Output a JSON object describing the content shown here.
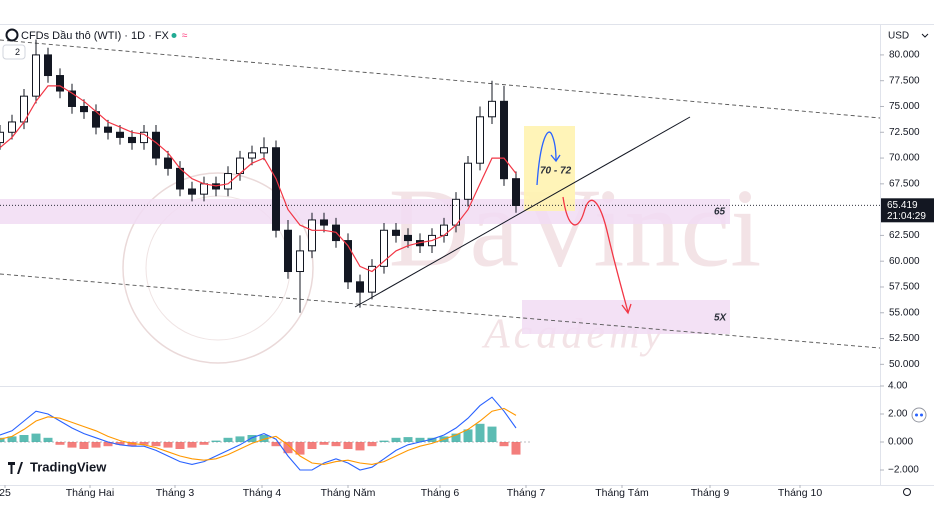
{
  "header": {
    "currency": "USD",
    "indicator_count": "2",
    "brand": "TradingView",
    "watermark": "DaVinci",
    "watermark_sub": "Academy",
    "countdown": "21:04:29"
  },
  "annotations": {
    "target_zone": "70 - 72",
    "support": "65",
    "lower_zone": "5X"
  },
  "chart_data": [
    {
      "type": "candlestick",
      "title": "CFDs Dầu thô (WTI) · 1D · FX",
      "x": [
        0,
        3,
        6,
        9,
        12,
        15,
        18,
        21,
        24,
        27,
        30,
        33,
        36,
        39,
        42,
        45,
        48,
        51,
        54,
        57,
        60,
        63,
        66,
        69,
        72,
        75,
        78,
        81,
        84,
        87,
        90,
        93,
        96,
        99,
        102,
        105,
        108,
        111,
        114,
        117,
        120,
        123,
        126,
        129
      ],
      "open": [
        71.5,
        72.5,
        73.5,
        76,
        80,
        78,
        76.5,
        75,
        74.5,
        73,
        72.5,
        72,
        71.5,
        72.5,
        70,
        69,
        67,
        66.5,
        67.5,
        67,
        68.5,
        70,
        70.5,
        71,
        63,
        59,
        61,
        64,
        63.5,
        62,
        58,
        57,
        59.5,
        63,
        62.5,
        62,
        61.5,
        62.5,
        63.5,
        66,
        69.5,
        74,
        75.5,
        68
      ],
      "high": [
        73.2,
        74.2,
        76.7,
        81.5,
        80.7,
        78.7,
        77.2,
        75.7,
        75.2,
        73.7,
        73.2,
        72.7,
        73.2,
        73.2,
        70.7,
        69.7,
        67.7,
        68.2,
        68.2,
        69.2,
        70.7,
        71.2,
        72,
        71.7,
        64,
        62.5,
        64.7,
        64.7,
        64.2,
        62.7,
        58.7,
        60.2,
        63.7,
        63.7,
        63.2,
        62.7,
        63.2,
        64.2,
        66.7,
        70.2,
        75,
        77.5,
        77,
        68.7
      ],
      "low": [
        70.8,
        71.8,
        72.8,
        75.3,
        77.3,
        75.8,
        74.3,
        73.8,
        72.3,
        71.8,
        71.3,
        70.8,
        70.8,
        69.3,
        68.3,
        66.3,
        65.8,
        65.8,
        66.3,
        66.3,
        67.8,
        69.3,
        69.8,
        62.3,
        58.3,
        55,
        60.3,
        62.8,
        61.3,
        57.3,
        55.5,
        56.3,
        58.8,
        61.8,
        61.3,
        60.8,
        60.8,
        61.8,
        62.8,
        65.3,
        68.8,
        73.3,
        67.3,
        64.7
      ],
      "close": [
        72.5,
        73.5,
        76,
        80,
        78,
        76.5,
        75,
        74.5,
        73,
        72.5,
        72,
        71.5,
        72.5,
        70,
        69,
        67,
        66.5,
        67.5,
        67,
        68.5,
        70,
        70.5,
        71,
        63,
        59,
        61,
        64,
        63.5,
        62,
        58,
        57,
        59.5,
        63,
        62.5,
        62,
        61.5,
        62.5,
        63.5,
        66,
        69.5,
        74,
        75.5,
        68,
        65.4
      ],
      "up_color": "#ffffff",
      "down_color": "#131722",
      "ma": {
        "color": "#f23645",
        "values": [
          71,
          72,
          73.5,
          75.5,
          77,
          77,
          76.3,
          75.5,
          74.5,
          73.5,
          73,
          72.5,
          72.3,
          71.5,
          70.5,
          69,
          68,
          67.5,
          67.3,
          67.5,
          68.5,
          69.5,
          70,
          68,
          65,
          63.5,
          63,
          63,
          62.8,
          61.5,
          59.5,
          59,
          60,
          61,
          61.5,
          61.8,
          62,
          62.5,
          63.5,
          65,
          67.5,
          70,
          70,
          68.5
        ]
      },
      "last_price": 65.419,
      "xlim": [
        0,
        220
      ],
      "xticks": [
        {
          "value": 1.25,
          "label": "25"
        },
        {
          "value": 22.5,
          "label": "Tháng Hai"
        },
        {
          "value": 43.75,
          "label": "Tháng 3"
        },
        {
          "value": 65.5,
          "label": "Tháng 4"
        },
        {
          "value": 87,
          "label": "Tháng Năm"
        },
        {
          "value": 110,
          "label": "Tháng 6"
        },
        {
          "value": 131.5,
          "label": "Tháng 7"
        },
        {
          "value": 155.5,
          "label": "Tháng Tám"
        },
        {
          "value": 177.5,
          "label": "Tháng 9"
        },
        {
          "value": 200,
          "label": "Tháng 10"
        }
      ],
      "ylim": [
        47.9,
        82.9
      ],
      "yticks": [
        {
          "value": 80,
          "label": "80.000"
        },
        {
          "value": 77.5,
          "label": "77.500"
        },
        {
          "value": 75,
          "label": "75.000"
        },
        {
          "value": 72.5,
          "label": "72.500"
        },
        {
          "value": 70,
          "label": "70.000"
        },
        {
          "value": 67.5,
          "label": "67.500"
        },
        {
          "value": 62.5,
          "label": "62.500"
        },
        {
          "value": 60,
          "label": "60.000"
        },
        {
          "value": 57.5,
          "label": "57.500"
        },
        {
          "value": 55,
          "label": "55.000"
        },
        {
          "value": 52.5,
          "label": "52.500"
        },
        {
          "value": 50,
          "label": "50.000"
        }
      ]
    },
    {
      "type": "macd",
      "histogram": {
        "color": "#26a69a",
        "negative_color": "#ef5350",
        "values": [
          0.3,
          0.4,
          0.5,
          0.6,
          0.3,
          -0.2,
          -0.4,
          -0.5,
          -0.4,
          -0.3,
          -0.2,
          -0.3,
          -0.2,
          -0.3,
          -0.4,
          -0.5,
          -0.4,
          -0.2,
          0.1,
          0.3,
          0.4,
          0.5,
          0.5,
          -0.3,
          -0.8,
          -0.9,
          -0.5,
          -0.2,
          -0.3,
          -0.5,
          -0.6,
          -0.3,
          0.1,
          0.3,
          0.35,
          0.3,
          0.3,
          0.4,
          0.6,
          0.9,
          1.3,
          1.1,
          -0.3,
          -0.9
        ]
      },
      "series": [
        {
          "color": "#2962ff",
          "values": [
            0.5,
            0.8,
            1.5,
            2.2,
            2,
            1.5,
            1,
            0.6,
            0.3,
            0,
            -0.2,
            -0.3,
            -0.3,
            -0.6,
            -1,
            -1.4,
            -1.6,
            -1.4,
            -1,
            -0.6,
            -0.2,
            0.3,
            0.6,
            0.2,
            -1,
            -2,
            -2,
            -1.5,
            -1.2,
            -1.5,
            -2,
            -1.8,
            -1.2,
            -0.6,
            -0.2,
            0,
            0.2,
            0.5,
            1,
            1.7,
            2.6,
            3.2,
            2.2,
            1
          ]
        },
        {
          "color": "#ff9800",
          "values": [
            0.2,
            0.4,
            0.9,
            1.5,
            1.8,
            1.7,
            1.4,
            1.1,
            0.8,
            0.4,
            0.1,
            -0.1,
            -0.2,
            -0.4,
            -0.7,
            -1,
            -1.2,
            -1.3,
            -1.2,
            -0.9,
            -0.5,
            -0.1,
            0.2,
            0.4,
            -0.2,
            -1,
            -1.5,
            -1.6,
            -1.4,
            -1.3,
            -1.5,
            -1.6,
            -1.4,
            -1,
            -0.6,
            -0.3,
            -0.1,
            0.2,
            0.5,
            0.9,
            1.5,
            2.2,
            2.4,
            1.9
          ]
        }
      ],
      "ylim": [
        -3.1,
        4
      ],
      "yticks": [
        {
          "value": 4,
          "label": "4.00"
        },
        {
          "value": 2,
          "label": "2.00"
        },
        {
          "value": 0,
          "label": "0.000"
        },
        {
          "value": -2,
          "label": "−2.000"
        }
      ]
    }
  ]
}
